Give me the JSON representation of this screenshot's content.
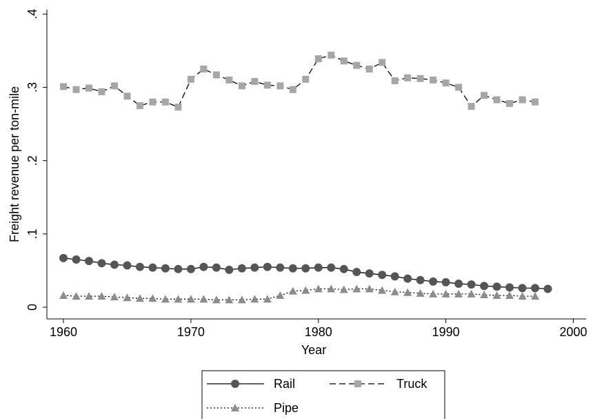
{
  "chart_data": {
    "type": "line",
    "x_label": "Year",
    "y_label": "Freight revenue per ton-mile",
    "x": [
      1960,
      1961,
      1962,
      1963,
      1964,
      1965,
      1966,
      1967,
      1968,
      1969,
      1970,
      1971,
      1972,
      1973,
      1974,
      1975,
      1976,
      1977,
      1978,
      1979,
      1980,
      1981,
      1982,
      1983,
      1984,
      1985,
      1986,
      1987,
      1988,
      1989,
      1990,
      1991,
      1992,
      1993,
      1994,
      1995,
      1996,
      1997,
      1998
    ],
    "xlim": [
      1958.7,
      2001
    ],
    "xticks": [
      1960,
      1970,
      1980,
      1990,
      2000
    ],
    "ylim": [
      -0.016,
      0.406
    ],
    "yticks": [
      0,
      {
        "value": 0.1,
        "label": ".1"
      },
      {
        "value": 0.2,
        "label": ".2"
      },
      {
        "value": 0.3,
        "label": ".3"
      },
      {
        "value": 0.4,
        "label": ".4"
      }
    ],
    "series": [
      {
        "name": "Rail",
        "color": "#555555",
        "line_style": "solid",
        "marker": "circle",
        "values": [
          0.067,
          0.065,
          0.063,
          0.06,
          0.058,
          0.057,
          0.055,
          0.054,
          0.053,
          0.052,
          0.052,
          0.055,
          0.054,
          0.051,
          0.053,
          0.054,
          0.055,
          0.054,
          0.053,
          0.053,
          0.054,
          0.054,
          0.052,
          0.048,
          0.046,
          0.044,
          0.042,
          0.039,
          0.037,
          0.035,
          0.034,
          0.032,
          0.031,
          0.029,
          0.028,
          0.027,
          0.026,
          0.026,
          0.025
        ]
      },
      {
        "name": "Truck",
        "color": "#a6a6a6",
        "line_style": "dashed",
        "marker": "square",
        "values": [
          0.301,
          0.297,
          0.299,
          0.294,
          0.302,
          0.288,
          0.275,
          0.28,
          0.28,
          0.273,
          0.311,
          0.325,
          0.317,
          0.31,
          0.302,
          0.308,
          0.303,
          0.302,
          0.297,
          0.311,
          0.339,
          0.344,
          0.336,
          0.33,
          0.325,
          0.334,
          0.309,
          0.313,
          0.312,
          0.31,
          0.306,
          0.3,
          0.274,
          0.289,
          0.283,
          0.278,
          0.283,
          0.28,
          null
        ]
      },
      {
        "name": "Pipe",
        "color": "#8c8c8c",
        "line_style": "dotted",
        "marker": "triangle",
        "values": [
          0.016,
          0.015,
          0.015,
          0.015,
          0.014,
          0.013,
          0.012,
          0.012,
          0.011,
          0.011,
          0.011,
          0.011,
          0.01,
          0.01,
          0.01,
          0.011,
          0.011,
          0.016,
          0.022,
          0.023,
          0.025,
          0.025,
          0.024,
          0.025,
          0.025,
          0.023,
          0.021,
          0.02,
          0.019,
          0.018,
          0.018,
          0.018,
          0.018,
          0.017,
          0.016,
          0.016,
          0.015,
          0.015,
          null
        ]
      }
    ]
  }
}
